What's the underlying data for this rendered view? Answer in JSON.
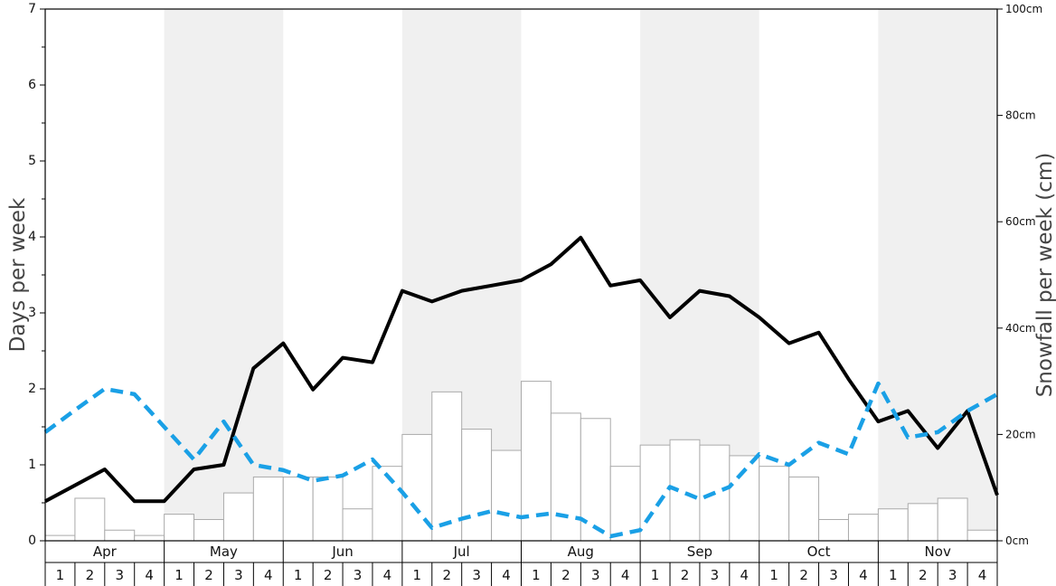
{
  "chart_data": {
    "type": "bar",
    "ylabel": "Days per week",
    "y2label": "Snowfall per week (cm)",
    "ylim": [
      0,
      7
    ],
    "y2lim": [
      0,
      100
    ],
    "y_ticks": [
      "0",
      "1",
      "2",
      "3",
      "4",
      "5",
      "6",
      "7"
    ],
    "y2_ticks": [
      "0cm",
      "20cm",
      "40cm",
      "60cm",
      "80cm",
      "100cm"
    ],
    "months": [
      "Apr",
      "May",
      "Jun",
      "Jul",
      "Aug",
      "Sep",
      "Oct",
      "Nov"
    ],
    "weeks": [
      "1",
      "2",
      "3",
      "4"
    ],
    "shaded_months": [
      "May",
      "Jul",
      "Sep",
      "Nov"
    ],
    "colors": {
      "snowfall_bar_fill": "#ffffff",
      "snowfall_bar_stroke": "#aaaaaa",
      "snow_days_line": "#000000",
      "dashed_line": "#1aa0e6",
      "band": "#f0f0f0"
    },
    "series": [
      {
        "type": "bar",
        "axis": "right",
        "values": [
          1,
          8,
          2,
          1,
          5,
          4,
          9,
          12,
          12,
          12,
          6,
          14,
          20,
          28,
          21,
          17,
          30,
          24,
          23,
          14,
          18,
          19,
          18,
          16,
          14,
          12,
          4,
          5,
          6,
          7,
          8,
          2
        ]
      },
      {
        "type": "line",
        "axis": "left",
        "style": "solid",
        "values": [
          0.52,
          0.73,
          0.94,
          0.52,
          0.52,
          0.94,
          1.0,
          2.27,
          2.6,
          1.99,
          2.41,
          2.35,
          3.29,
          3.15,
          3.29,
          3.36,
          3.43,
          3.64,
          3.99,
          3.36,
          3.43,
          2.94,
          3.29,
          3.22,
          2.94,
          2.6,
          2.74,
          2.13,
          1.57,
          1.71,
          1.22,
          1.71,
          0.6
        ]
      },
      {
        "type": "line",
        "axis": "left",
        "style": "dashed",
        "values": [
          1.43,
          1.72,
          2.0,
          1.93,
          1.5,
          1.07,
          1.57,
          1.0,
          0.93,
          0.79,
          0.86,
          1.07,
          0.64,
          0.17,
          0.29,
          0.39,
          0.31,
          0.36,
          0.29,
          0.06,
          0.14,
          0.71,
          0.55,
          0.71,
          1.14,
          1.0,
          1.29,
          1.14,
          2.07,
          1.36,
          1.43,
          1.71,
          1.93
        ]
      }
    ]
  }
}
